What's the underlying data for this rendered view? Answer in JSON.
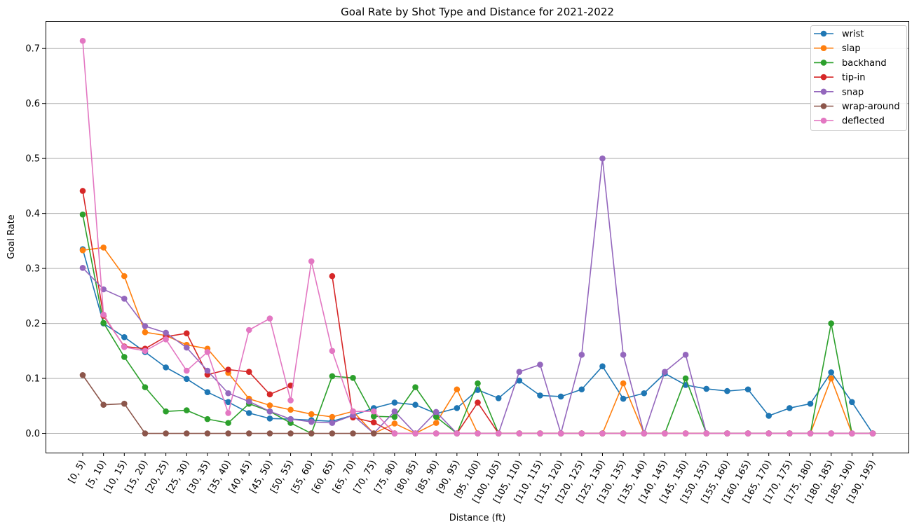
{
  "chart_data": {
    "type": "line",
    "title": "Goal Rate by Shot Type and Distance for 2021-2022",
    "xlabel": "Distance (ft)",
    "ylabel": "Goal Rate",
    "ylim": [
      -0.035,
      0.75
    ],
    "yticks": [
      0.0,
      0.1,
      0.2,
      0.3,
      0.4,
      0.5,
      0.6,
      0.7
    ],
    "ytick_labels": [
      "0.0",
      "0.1",
      "0.2",
      "0.3",
      "0.4",
      "0.5",
      "0.6",
      "0.7"
    ],
    "grid": "y-axis",
    "legend_position": "top-right",
    "categories": [
      "[0, 5)",
      "[5, 10)",
      "[10, 15)",
      "[15, 20)",
      "[20, 25)",
      "[25, 30)",
      "[30, 35)",
      "[35, 40)",
      "[40, 45)",
      "[45, 50)",
      "[50, 55)",
      "[55, 60)",
      "[60, 65)",
      "[65, 70)",
      "[70, 75)",
      "[75, 80)",
      "[80, 85)",
      "[85, 90)",
      "[90, 95)",
      "[95, 100)",
      "[100, 105)",
      "[105, 110)",
      "[110, 115)",
      "[115, 120)",
      "[120, 125)",
      "[125, 130)",
      "[130, 135)",
      "[135, 140)",
      "[140, 145)",
      "[145, 150)",
      "[150, 155)",
      "[155, 160)",
      "[160, 165)",
      "[165, 170)",
      "[170, 175)",
      "[175, 180)",
      "[180, 185)",
      "[185, 190)",
      "[190, 195)"
    ],
    "series": [
      {
        "name": "wrist",
        "color": "#1f77b4",
        "values": [
          0.335,
          0.2,
          0.175,
          0.148,
          0.12,
          0.099,
          0.075,
          0.057,
          0.037,
          0.027,
          0.026,
          0.024,
          0.022,
          0.033,
          0.046,
          0.056,
          0.052,
          0.036,
          0.046,
          0.079,
          0.064,
          0.096,
          0.069,
          0.067,
          0.08,
          0.122,
          0.063,
          0.073,
          0.109,
          0.088,
          0.081,
          0.077,
          0.08,
          0.032,
          0.046,
          0.054,
          0.111,
          0.057,
          0.0
        ]
      },
      {
        "name": "slap",
        "color": "#ff7f0e",
        "values": [
          0.333,
          0.338,
          0.286,
          0.184,
          0.178,
          0.161,
          0.154,
          0.11,
          0.063,
          0.051,
          0.043,
          0.035,
          0.03,
          0.04,
          0.0,
          0.018,
          0.0,
          0.019,
          0.08,
          0.0,
          0.0,
          0.0,
          0.0,
          0.0,
          0.0,
          0.0,
          0.091,
          0.0,
          0.0,
          0.0,
          0.0,
          0.0,
          0.0,
          0.0,
          0.0,
          0.0,
          0.1,
          0.0,
          0.0
        ]
      },
      {
        "name": "backhand",
        "color": "#2ca02c",
        "values": [
          0.398,
          0.201,
          0.139,
          0.084,
          0.04,
          0.042,
          0.026,
          0.019,
          0.054,
          0.04,
          0.019,
          0.0,
          0.104,
          0.101,
          0.031,
          0.03,
          0.084,
          0.03,
          0.0,
          0.091,
          0.0,
          0.0,
          0.0,
          0.0,
          0.0,
          0.0,
          0.0,
          0.0,
          0.0,
          0.1,
          0.0,
          0.0,
          0.0,
          0.0,
          0.0,
          0.0,
          0.2,
          0.0,
          0.0
        ]
      },
      {
        "name": "tip-in",
        "color": "#d62728",
        "values": [
          0.441,
          0.214,
          0.158,
          0.154,
          0.176,
          0.182,
          0.107,
          0.116,
          0.112,
          0.071,
          0.087,
          null,
          0.286,
          0.029,
          0.02,
          0.0,
          null,
          0.0,
          0.0,
          0.056,
          0.0,
          0.0,
          0.0,
          0.0,
          0.0,
          0.0,
          0.0,
          0.0,
          0.0,
          0.0,
          0.0,
          0.0,
          0.0,
          0.0,
          0.0,
          0.0,
          0.0,
          0.0,
          0.0
        ]
      },
      {
        "name": "snap",
        "color": "#9467bd",
        "values": [
          0.301,
          0.262,
          0.245,
          0.195,
          0.183,
          0.156,
          0.114,
          0.073,
          0.058,
          0.04,
          0.026,
          0.021,
          0.019,
          0.033,
          0.0,
          0.04,
          0.0,
          0.039,
          0.0,
          0.0,
          0.0,
          0.112,
          0.125,
          0.0,
          0.143,
          0.5,
          0.143,
          0.0,
          0.112,
          0.143,
          0.0,
          0.0,
          0.0,
          0.0,
          0.0,
          0.0,
          0.0,
          0.0,
          0.0
        ]
      },
      {
        "name": "wrap-around",
        "color": "#8c564b",
        "values": [
          0.106,
          0.052,
          0.054,
          0.0,
          0.0,
          0.0,
          0.0,
          0.0,
          0.0,
          0.0,
          0.0,
          0.0,
          0.0,
          0.0,
          0.0,
          0.0,
          0.0,
          0.0,
          0.0,
          0.0,
          0.0,
          0.0,
          0.0,
          0.0,
          0.0,
          0.0,
          0.0,
          0.0,
          0.0,
          0.0,
          0.0,
          0.0,
          0.0,
          0.0,
          0.0,
          0.0,
          0.0,
          0.0,
          0.0
        ]
      },
      {
        "name": "deflected",
        "color": "#e377c2",
        "values": [
          0.714,
          0.216,
          0.157,
          0.15,
          0.171,
          0.114,
          0.148,
          0.037,
          0.188,
          0.209,
          0.06,
          0.313,
          0.15,
          0.04,
          0.04,
          0.0,
          0.0,
          0.0,
          0.0,
          0.0,
          0.0,
          0.0,
          0.0,
          0.0,
          0.0,
          0.0,
          0.0,
          0.0,
          0.0,
          0.0,
          0.0,
          0.0,
          0.0,
          0.0,
          0.0,
          0.0,
          0.0,
          0.0,
          0.0
        ]
      }
    ]
  }
}
